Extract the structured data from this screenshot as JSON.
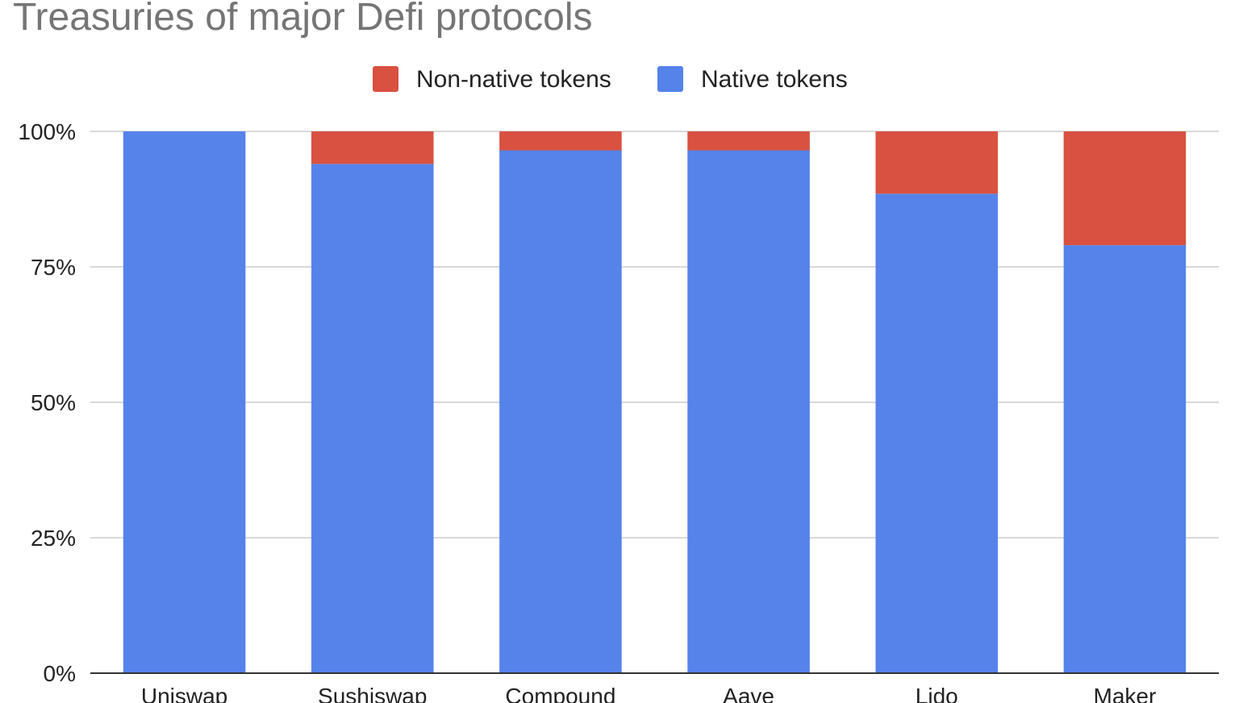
{
  "chart_data": {
    "type": "bar",
    "stacked": true,
    "percent_stacked": true,
    "title": "Treasuries of major Defi protocols",
    "categories": [
      "Uniswap",
      "Sushiswap",
      "Compound",
      "Aave",
      "Lido",
      "Maker"
    ],
    "series": [
      {
        "name": "Native tokens",
        "color": "#5583EA",
        "values": [
          100,
          94,
          96.5,
          96.5,
          88.5,
          79
        ]
      },
      {
        "name": "Non-native tokens",
        "color": "#D95140",
        "values": [
          0,
          6,
          3.5,
          3.5,
          11.5,
          21
        ]
      }
    ],
    "legend_order": [
      "Non-native tokens",
      "Native tokens"
    ],
    "legend_position": "top-center",
    "ylim": [
      0,
      100
    ],
    "yticks": [
      0,
      25,
      50,
      75,
      100
    ],
    "ytick_labels": [
      "0%",
      "25%",
      "50%",
      "75%",
      "100%"
    ],
    "grid": true,
    "xlabel": "",
    "ylabel": ""
  }
}
